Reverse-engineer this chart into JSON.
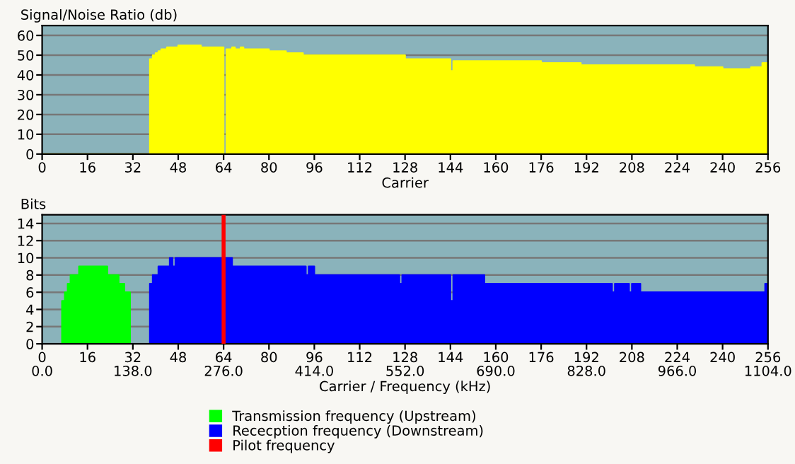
{
  "chart_data": [
    {
      "type": "area",
      "title": "Signal/Noise Ratio (db)",
      "xlabel": "Carrier",
      "xlim": [
        0,
        256
      ],
      "xticks": [
        0,
        16,
        32,
        48,
        64,
        80,
        96,
        112,
        128,
        144,
        160,
        176,
        192,
        208,
        224,
        240,
        256
      ],
      "ylim": [
        0,
        65
      ],
      "yticks": [
        0,
        10,
        20,
        30,
        40,
        50,
        60
      ],
      "grid": "y",
      "legend": false,
      "bands": [
        {
          "axis": "y",
          "from": 0,
          "to": 65,
          "color": "#8ab3bb"
        }
      ],
      "series": [
        {
          "color": "#ffff00",
          "x": [
            0,
            38,
            38,
            39,
            39,
            40,
            40,
            41,
            41,
            42,
            42,
            44,
            44,
            48,
            48,
            56,
            56,
            64,
            64,
            65,
            65,
            67,
            67,
            68,
            68,
            70,
            70,
            71,
            71,
            80,
            80,
            86,
            86,
            92,
            92,
            128,
            128,
            144,
            144,
            145,
            145,
            176,
            176,
            190,
            190,
            230,
            230,
            240,
            240,
            250,
            250,
            254,
            254,
            256
          ],
          "values": [
            0,
            0,
            48,
            48,
            50,
            50,
            51,
            51,
            52,
            52,
            53,
            53,
            54,
            54,
            55,
            55,
            54,
            54,
            0,
            0,
            53,
            53,
            54,
            54,
            53,
            53,
            54,
            54,
            53,
            53,
            52,
            52,
            51,
            51,
            50,
            50,
            48,
            48,
            42,
            42,
            47,
            47,
            46,
            46,
            45,
            45,
            44,
            44,
            43,
            43,
            44,
            44,
            46,
            46
          ]
        }
      ]
    },
    {
      "type": "area",
      "title": "Bits",
      "x2label": "Carrier / Frequency (kHz)",
      "xlim": [
        0,
        256
      ],
      "xticks": [
        0,
        16,
        32,
        48,
        64,
        80,
        96,
        112,
        128,
        144,
        160,
        176,
        192,
        208,
        224,
        240,
        256
      ],
      "x2lim": [
        0,
        1104
      ],
      "x2ticks": [
        {
          "value": 0,
          "label": "0.0"
        },
        {
          "value": 138,
          "label": "138.0"
        },
        {
          "value": 276,
          "label": "276.0"
        },
        {
          "value": 414,
          "label": "414.0"
        },
        {
          "value": 552,
          "label": "552.0"
        },
        {
          "value": 690,
          "label": "690.0"
        },
        {
          "value": 828,
          "label": "828.0"
        },
        {
          "value": 966,
          "label": "966.0"
        },
        {
          "value": 1104,
          "label": "1104.0"
        }
      ],
      "ylim": [
        0,
        15
      ],
      "yticks": [
        0,
        2,
        4,
        6,
        8,
        10,
        12,
        14
      ],
      "grid": "y",
      "legend": "bottom",
      "bands": [
        {
          "axis": "y",
          "from": 0,
          "to": 15,
          "color": "#8ab3bb"
        }
      ],
      "series": [
        {
          "name": "Transmission frequency (Upstream)",
          "color": "#00ff00",
          "x": [
            7,
            7,
            8,
            8,
            9,
            9,
            10,
            10,
            13,
            13,
            23,
            23,
            27,
            27,
            29,
            29,
            31,
            31
          ],
          "values": [
            0,
            5,
            5,
            6,
            6,
            7,
            7,
            8,
            8,
            9,
            9,
            8,
            8,
            7,
            7,
            6,
            6,
            0
          ]
        },
        {
          "name": "Rececption frequency (Downstream)",
          "color": "#0000ff",
          "x": [
            38,
            38,
            39,
            39,
            41,
            41,
            45,
            45,
            46,
            46,
            47,
            47,
            67,
            67,
            93,
            93,
            94,
            94,
            96,
            96,
            126,
            126,
            127,
            127,
            144,
            144,
            145,
            145,
            156,
            156,
            201,
            201,
            202,
            202,
            207,
            207,
            208,
            208,
            211,
            211,
            255,
            255,
            256
          ],
          "values": [
            0,
            7,
            7,
            8,
            8,
            9,
            9,
            10,
            10,
            9,
            9,
            10,
            10,
            9,
            9,
            8,
            8,
            9,
            9,
            8,
            8,
            7,
            7,
            8,
            8,
            5,
            5,
            8,
            8,
            7,
            7,
            6,
            6,
            7,
            7,
            6,
            6,
            7,
            7,
            6,
            6,
            7,
            7
          ]
        }
      ],
      "ref_lines": [
        {
          "axis": "x",
          "value": 64,
          "label": "Pilot frequency",
          "color": "#ff0000"
        }
      ]
    }
  ]
}
